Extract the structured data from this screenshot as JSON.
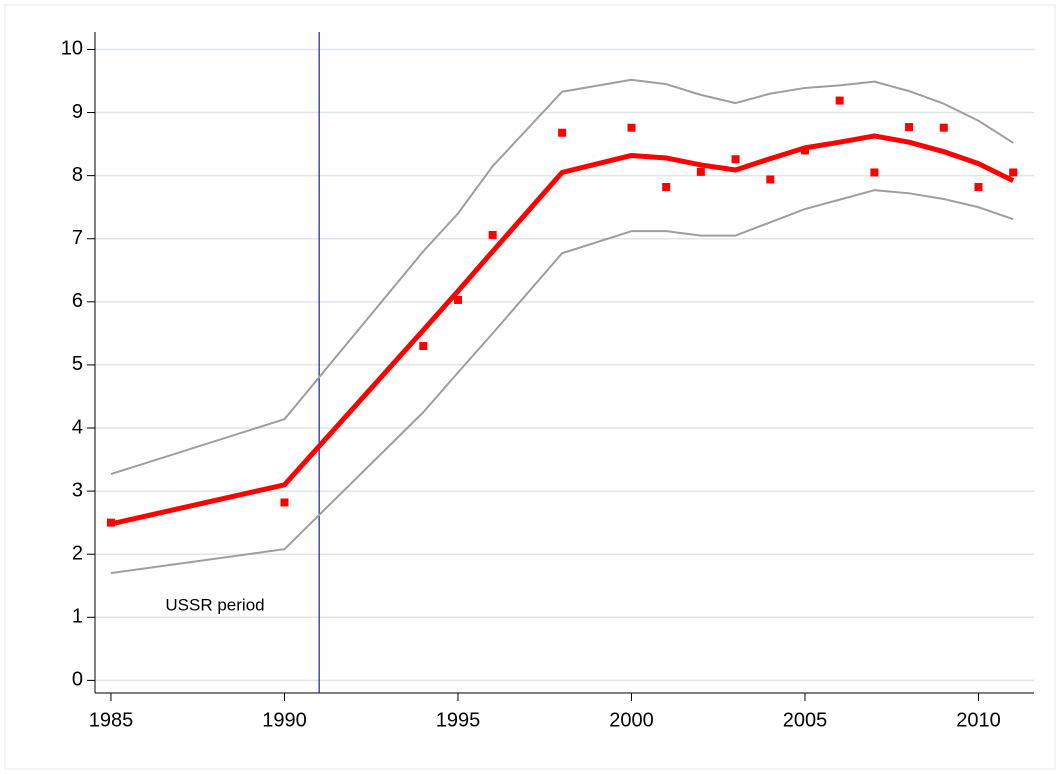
{
  "chart_data": {
    "type": "line",
    "x": [
      1985,
      1990,
      1994,
      1995,
      1996,
      1998,
      2000,
      2001,
      2002,
      2003,
      2004,
      2005,
      2006,
      2007,
      2008,
      2009,
      2010,
      2011
    ],
    "series": [
      {
        "color": "#9e9e9e",
        "mode": "line",
        "width": 2,
        "values": [
          3.27,
          4.14,
          6.8,
          7.4,
          8.15,
          9.33,
          9.52,
          9.45,
          9.28,
          9.15,
          9.3,
          9.39,
          9.43,
          9.49,
          9.34,
          9.14,
          8.87,
          8.52
        ]
      },
      {
        "color": "#9e9e9e",
        "mode": "line",
        "width": 2,
        "values": [
          1.7,
          2.08,
          4.25,
          4.88,
          5.5,
          6.77,
          7.12,
          7.12,
          7.05,
          7.05,
          7.26,
          7.47,
          7.62,
          7.77,
          7.72,
          7.63,
          7.5,
          7.31
        ]
      },
      {
        "color": "#ff0000",
        "mode": "line",
        "width": 5,
        "values": [
          2.48,
          3.1,
          5.55,
          6.17,
          6.8,
          8.05,
          8.32,
          8.28,
          8.17,
          8.09,
          8.27,
          8.44,
          8.53,
          8.63,
          8.53,
          8.38,
          8.19,
          7.92
        ]
      },
      {
        "color": "#ff0000",
        "mode": "markers",
        "values": [
          2.5,
          2.82,
          5.3,
          6.03,
          7.06,
          8.68,
          8.76,
          7.82,
          8.06,
          8.26,
          7.94,
          8.4,
          9.19,
          8.05,
          8.77,
          8.76,
          7.82,
          8.05
        ]
      }
    ],
    "xlim": [
      1984.54,
      2011.6
    ],
    "xticks": [
      1985,
      1990,
      1995,
      2000,
      2005,
      2010
    ],
    "ylim": [
      -0.2,
      10.15
    ],
    "yticks": [
      0,
      1,
      2,
      3,
      4,
      5,
      6,
      7,
      8,
      9,
      10
    ],
    "grid": true,
    "vline": {
      "x": 1991,
      "color": "#1a1aa6",
      "label": "USSR period"
    }
  }
}
